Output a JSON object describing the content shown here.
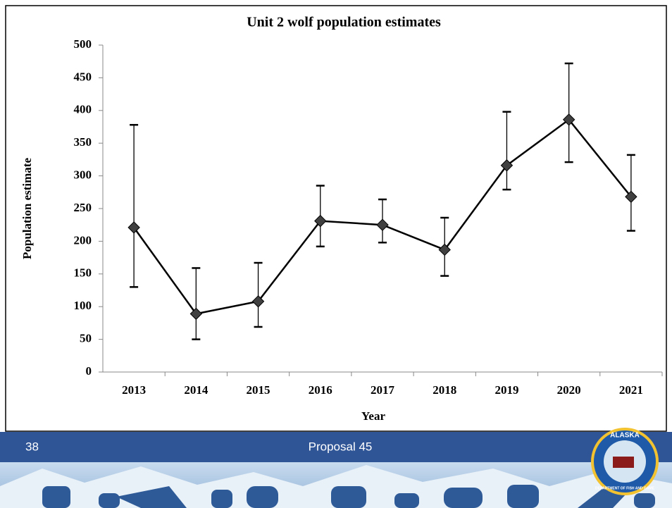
{
  "chart_data": {
    "type": "line",
    "title": "Unit 2 wolf population estimates",
    "x_label": "Year",
    "y_label": "Population estimate",
    "categories": [
      "2013",
      "2014",
      "2015",
      "2016",
      "2017",
      "2018",
      "2019",
      "2020",
      "2021"
    ],
    "series": [
      {
        "name": "Population estimate",
        "color": "#404040",
        "values": [
          221,
          89,
          108,
          231,
          225,
          187,
          316,
          386,
          268
        ],
        "upper": [
          378,
          159,
          167,
          285,
          264,
          236,
          398,
          472,
          332
        ],
        "lower": [
          130,
          50,
          69,
          192,
          198,
          147,
          279,
          321,
          216
        ]
      }
    ],
    "ylim": [
      0,
      500
    ],
    "yticks": [
      0,
      50,
      100,
      150,
      200,
      250,
      300,
      350,
      400,
      450,
      500
    ],
    "grid": false
  },
  "footer": {
    "page_number": "38",
    "title": "Proposal 45",
    "logo": {
      "top": "ALASKA",
      "bottom": "DEPARTMENT OF FISH AND GAME"
    }
  }
}
